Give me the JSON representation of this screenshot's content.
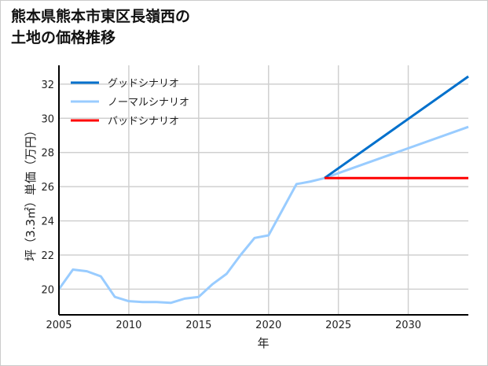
{
  "chart_data": {
    "type": "line",
    "title_lines": [
      "熊本県熊本市東区長嶺西の",
      "土地の価格推移"
    ],
    "xlabel": "年",
    "ylabel": "坪（3.3㎡）単価（万円）",
    "xlim": [
      2005,
      2034.3
    ],
    "ylim": [
      18.5,
      33.1
    ],
    "xticks": [
      2005,
      2010,
      2015,
      2020,
      2025,
      2030
    ],
    "yticks": [
      20,
      22,
      24,
      26,
      28,
      30,
      32
    ],
    "grid": true,
    "legend_position": "top-left",
    "history": {
      "x": [
        2005,
        2006,
        2007,
        2008,
        2009,
        2010,
        2011,
        2012,
        2013,
        2014,
        2015,
        2016,
        2017,
        2018,
        2019,
        2020,
        2021,
        2022,
        2023,
        2024
      ],
      "y": [
        20.0,
        21.15,
        21.05,
        20.75,
        19.55,
        19.3,
        19.25,
        19.25,
        19.2,
        19.45,
        19.55,
        20.3,
        20.9,
        22.0,
        23.0,
        23.15,
        24.65,
        26.15,
        26.3,
        26.5
      ],
      "color": "#99ccff"
    },
    "series": [
      {
        "name": "グッドシナリオ",
        "x": [
          2024,
          2034.3
        ],
        "y": [
          26.5,
          32.45
        ],
        "color": "#0070cc"
      },
      {
        "name": "ノーマルシナリオ",
        "x": [
          2024,
          2034.3
        ],
        "y": [
          26.5,
          29.5
        ],
        "color": "#99ccff"
      },
      {
        "name": "バッドシナリオ",
        "x": [
          2024,
          2034.3
        ],
        "y": [
          26.5,
          26.5
        ],
        "color": "#ff0000"
      }
    ]
  }
}
